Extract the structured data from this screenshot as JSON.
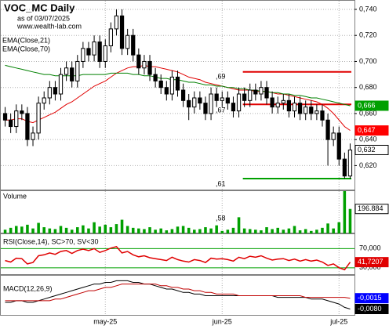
{
  "chart_data": {
    "type": "candlestick",
    "title": "VOC_MC Daily",
    "subtitle": "as of 03/07/2025",
    "source": "www.wealth-lab.com",
    "xticks": [
      {
        "value": 18,
        "label": "may-25"
      },
      {
        "value": 39,
        "label": "jun-25"
      },
      {
        "value": 60,
        "label": "jul-25"
      }
    ],
    "open": [
      0.66,
      0.655,
      0.65,
      0.662,
      0.66,
      0.64,
      0.645,
      0.668,
      0.672,
      0.68,
      0.675,
      0.69,
      0.695,
      0.685,
      0.7,
      0.71,
      0.705,
      0.715,
      0.7,
      0.712,
      0.725,
      0.735,
      0.71,
      0.72,
      0.705,
      0.695,
      0.7,
      0.69,
      0.685,
      0.68,
      0.675,
      0.688,
      0.678,
      0.67,
      0.665,
      0.672,
      0.668,
      0.66,
      0.675,
      0.67,
      0.672,
      0.668,
      0.662,
      0.675,
      0.67,
      0.678,
      0.675,
      0.68,
      0.672,
      0.665,
      0.668,
      0.67,
      0.662,
      0.668,
      0.66,
      0.665,
      0.66,
      0.662,
      0.655,
      0.64,
      0.645,
      0.625,
      0.612
    ],
    "high": [
      0.665,
      0.66,
      0.667,
      0.667,
      0.665,
      0.65,
      0.673,
      0.677,
      0.685,
      0.685,
      0.695,
      0.7,
      0.7,
      0.705,
      0.715,
      0.715,
      0.72,
      0.72,
      0.717,
      0.73,
      0.74,
      0.74,
      0.725,
      0.725,
      0.71,
      0.705,
      0.705,
      0.695,
      0.69,
      0.685,
      0.693,
      0.693,
      0.683,
      0.675,
      0.677,
      0.677,
      0.673,
      0.68,
      0.68,
      0.677,
      0.677,
      0.673,
      0.68,
      0.68,
      0.683,
      0.683,
      0.685,
      0.685,
      0.677,
      0.673,
      0.675,
      0.675,
      0.673,
      0.673,
      0.67,
      0.67,
      0.667,
      0.667,
      0.66,
      0.65,
      0.65,
      0.63,
      0.637
    ],
    "low": [
      0.65,
      0.645,
      0.645,
      0.655,
      0.635,
      0.635,
      0.64,
      0.663,
      0.667,
      0.67,
      0.67,
      0.685,
      0.68,
      0.68,
      0.695,
      0.7,
      0.7,
      0.695,
      0.695,
      0.707,
      0.72,
      0.705,
      0.705,
      0.7,
      0.69,
      0.69,
      0.685,
      0.68,
      0.675,
      0.67,
      0.67,
      0.673,
      0.665,
      0.655,
      0.66,
      0.663,
      0.655,
      0.655,
      0.665,
      0.665,
      0.663,
      0.657,
      0.657,
      0.665,
      0.665,
      0.67,
      0.67,
      0.667,
      0.66,
      0.66,
      0.663,
      0.657,
      0.657,
      0.655,
      0.655,
      0.655,
      0.655,
      0.65,
      0.62,
      0.635,
      0.62,
      0.61,
      0.61
    ],
    "close": [
      0.655,
      0.65,
      0.662,
      0.66,
      0.64,
      0.645,
      0.668,
      0.672,
      0.68,
      0.675,
      0.69,
      0.695,
      0.685,
      0.7,
      0.71,
      0.705,
      0.715,
      0.7,
      0.712,
      0.725,
      0.735,
      0.71,
      0.72,
      0.705,
      0.695,
      0.7,
      0.69,
      0.685,
      0.68,
      0.675,
      0.688,
      0.678,
      0.67,
      0.665,
      0.672,
      0.668,
      0.66,
      0.675,
      0.67,
      0.672,
      0.668,
      0.662,
      0.675,
      0.67,
      0.678,
      0.675,
      0.68,
      0.672,
      0.665,
      0.668,
      0.67,
      0.662,
      0.668,
      0.66,
      0.665,
      0.66,
      0.662,
      0.655,
      0.64,
      0.645,
      0.625,
      0.612,
      0.632
    ],
    "ylim": [
      0.601,
      0.7466
    ],
    "yticks": [
      {
        "value": 0.74,
        "label": "0,740"
      },
      {
        "value": 0.72,
        "label": "0,720"
      },
      {
        "value": 0.7,
        "label": "0,700"
      },
      {
        "value": 0.68,
        "label": "0,680"
      },
      {
        "value": 0.66,
        "label": "0,660"
      },
      {
        "value": 0.64,
        "label": "0,640"
      },
      {
        "value": 0.62,
        "label": "0,620"
      }
    ],
    "price_labels": [
      {
        "value": 0.666,
        "label": "0,666",
        "color": "#00a000"
      },
      {
        "value": 0.647,
        "label": "0,647",
        "color": "#ff0000"
      },
      {
        "value": 0.632,
        "label": "0,632",
        "color": "#ffffff"
      }
    ],
    "series": [
      {
        "name": "EMA(Close,21)",
        "color": "#e00000",
        "values": [
          0.655,
          0.655,
          0.656,
          0.656,
          0.654,
          0.653,
          0.655,
          0.657,
          0.659,
          0.661,
          0.664,
          0.667,
          0.669,
          0.672,
          0.675,
          0.678,
          0.681,
          0.683,
          0.685,
          0.688,
          0.691,
          0.693,
          0.695,
          0.696,
          0.696,
          0.697,
          0.696,
          0.696,
          0.695,
          0.694,
          0.693,
          0.692,
          0.69,
          0.688,
          0.687,
          0.686,
          0.684,
          0.683,
          0.682,
          0.681,
          0.68,
          0.679,
          0.678,
          0.678,
          0.678,
          0.677,
          0.677,
          0.677,
          0.676,
          0.675,
          0.675,
          0.674,
          0.673,
          0.672,
          0.671,
          0.67,
          0.669,
          0.667,
          0.664,
          0.66,
          0.655,
          0.65,
          0.647
        ]
      },
      {
        "name": "EMA(Close,70)",
        "color": "#008000",
        "values": [
          0.697,
          0.696,
          0.695,
          0.694,
          0.693,
          0.692,
          0.691,
          0.69,
          0.69,
          0.689,
          0.689,
          0.689,
          0.689,
          0.689,
          0.69,
          0.69,
          0.69,
          0.69,
          0.69,
          0.691,
          0.691,
          0.691,
          0.691,
          0.69,
          0.69,
          0.689,
          0.689,
          0.688,
          0.687,
          0.687,
          0.686,
          0.686,
          0.685,
          0.684,
          0.684,
          0.683,
          0.682,
          0.682,
          0.681,
          0.681,
          0.68,
          0.68,
          0.679,
          0.679,
          0.678,
          0.678,
          0.677,
          0.677,
          0.676,
          0.676,
          0.675,
          0.675,
          0.674,
          0.674,
          0.673,
          0.672,
          0.672,
          0.671,
          0.67,
          0.669,
          0.668,
          0.667,
          0.666
        ]
      }
    ],
    "levels": [
      {
        "value": 0.692,
        "color": "#e00000"
      },
      {
        "value": 0.667,
        "color": "#e00000"
      },
      {
        "value": 0.61,
        "color": "#00a000"
      }
    ],
    "annotations": [
      ",69",
      ",67",
      ",61"
    ],
    "volume": {
      "title": "Volume",
      "color": "#00a000",
      "ylim": [
        0,
        340000
      ],
      "annotation": ",58",
      "label": {
        "value": 196884,
        "label": "196.884"
      },
      "values": [
        30000,
        45000,
        60000,
        55000,
        70000,
        40000,
        85000,
        50000,
        40000,
        35000,
        60000,
        45000,
        30000,
        50000,
        65000,
        40000,
        90000,
        55000,
        70000,
        50000,
        75000,
        110000,
        60000,
        45000,
        40000,
        35000,
        50000,
        30000,
        40000,
        25000,
        35000,
        55000,
        60000,
        45000,
        30000,
        35000,
        50000,
        40000,
        65000,
        20000,
        30000,
        45000,
        130000,
        40000,
        35000,
        30000,
        25000,
        50000,
        35000,
        45000,
        30000,
        40000,
        60000,
        25000,
        35000,
        20000,
        30000,
        45000,
        80000,
        40000,
        90000,
        340000,
        196884
      ]
    },
    "rsi": {
      "title": "RSI(Close,14), SC>70, SV<30",
      "color": "#e00000",
      "band_color": "#00a000",
      "ylim": [
        15,
        100
      ],
      "yticks": [
        {
          "value": 70,
          "label": "70,000"
        },
        {
          "value": 30,
          "label": "30,000"
        }
      ],
      "label": {
        "value": 41.7207,
        "label": "41,7207"
      },
      "values": [
        45,
        42,
        50,
        49,
        38,
        41,
        55,
        57,
        61,
        58,
        64,
        66,
        60,
        66,
        69,
        66,
        70,
        62,
        66,
        71,
        74,
        61,
        64,
        57,
        53,
        55,
        51,
        49,
        47,
        45,
        52,
        47,
        44,
        42,
        47,
        45,
        41,
        50,
        48,
        49,
        47,
        44,
        52,
        49,
        54,
        52,
        55,
        50,
        46,
        48,
        49,
        45,
        48,
        44,
        47,
        44,
        46,
        42,
        35,
        38,
        30,
        26,
        41.7207
      ]
    },
    "macd": {
      "title": "MACD(12,26,9)",
      "ylim": [
        -0.012,
        0.012
      ],
      "labels": [
        {
          "value": -0.0015,
          "label": "-0,0015",
          "color": "#0000ff"
        },
        {
          "value": -0.008,
          "label": "-0,0080",
          "color": "#000000"
        }
      ],
      "series": [
        {
          "color": "#000000",
          "values": [
            -0.004,
            -0.004,
            -0.003,
            -0.003,
            -0.004,
            -0.004,
            -0.003,
            -0.002,
            -0.001,
            0,
            0.001,
            0.002,
            0.003,
            0.004,
            0.005,
            0.006,
            0.007,
            0.007,
            0.008,
            0.008,
            0.009,
            0.009,
            0.009,
            0.008,
            0.008,
            0.007,
            0.007,
            0.006,
            0.005,
            0.004,
            0.004,
            0.003,
            0.002,
            0.002,
            0.001,
            0.001,
            0,
            0,
            0,
            0,
            0,
            0,
            0,
            0,
            0,
            0,
            0,
            0,
            0,
            -0.001,
            -0.001,
            -0.001,
            -0.001,
            -0.001,
            -0.001,
            -0.002,
            -0.002,
            -0.002,
            -0.003,
            -0.004,
            -0.005,
            -0.007,
            -0.008
          ]
        },
        {
          "color": "#c00000",
          "values": [
            -0.003,
            -0.003,
            -0.003,
            -0.003,
            -0.003,
            -0.003,
            -0.003,
            -0.003,
            -0.003,
            -0.002,
            -0.002,
            -0.001,
            0,
            0.001,
            0.002,
            0.003,
            0.003,
            0.004,
            0.005,
            0.005,
            0.006,
            0.007,
            0.007,
            0.007,
            0.007,
            0.007,
            0.007,
            0.007,
            0.006,
            0.006,
            0.005,
            0.005,
            0.004,
            0.004,
            0.003,
            0.003,
            0.002,
            0.002,
            0.001,
            0.001,
            0.001,
            0.001,
            0,
            0,
            0,
            0,
            0,
            0,
            0,
            0,
            0,
            0,
            0,
            0,
            -0.001,
            -0.001,
            -0.001,
            -0.001,
            -0.001,
            -0.001,
            -0.001,
            -0.001,
            -0.0015
          ]
        }
      ]
    }
  }
}
